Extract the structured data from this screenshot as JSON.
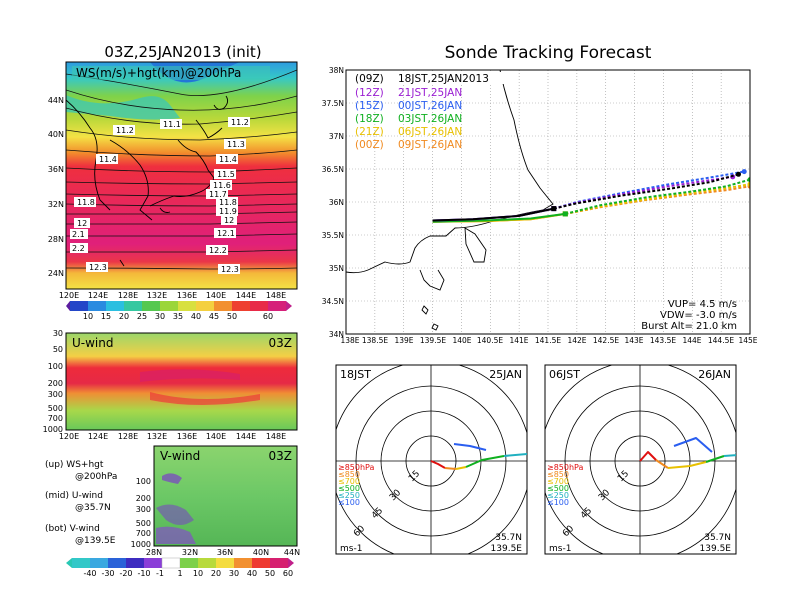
{
  "map_panel": {
    "title": "03Z,25JAN2013 (init)",
    "overlay_label": "WS(m/s)+hgt(km)@200hPa",
    "lat_ticks": [
      "44N",
      "40N",
      "36N",
      "32N",
      "28N",
      "24N"
    ],
    "lon_ticks": [
      "120E",
      "124E",
      "128E",
      "132E",
      "136E",
      "140E",
      "144E",
      "148E"
    ],
    "colorbar_ticks": [
      "10",
      "15",
      "20",
      "25",
      "30",
      "35",
      "40",
      "45",
      "50",
      "60"
    ],
    "contour_labels": [
      "11.1",
      "11.2",
      "11.2",
      "11.3",
      "11.4",
      "11.4",
      "11.5",
      "11.6",
      "11.7",
      "11.8",
      "11.8",
      "11.9",
      "12",
      "12",
      "12.1",
      "2.1",
      "2.2",
      "12.2",
      "12.3",
      "12.3"
    ]
  },
  "uwind_panel": {
    "label": "U-wind",
    "time": "03Z",
    "y_ticks": [
      "30",
      "50",
      "100",
      "200",
      "300",
      "500",
      "700",
      "1000"
    ],
    "x_ticks": [
      "120E",
      "124E",
      "128E",
      "132E",
      "136E",
      "140E",
      "144E",
      "148E"
    ]
  },
  "vwind_panel": {
    "label": "V-wind",
    "time": "03Z",
    "y_ticks": [
      "100",
      "200",
      "300",
      "500",
      "700",
      "1000"
    ],
    "x_ticks": [
      "28N",
      "32N",
      "36N",
      "40N",
      "44N"
    ],
    "colorbar_ticks": [
      "-40",
      "-30",
      "-20",
      "-10",
      "-1",
      "1",
      "10",
      "20",
      "30",
      "40",
      "50",
      "60"
    ]
  },
  "legend_notes": [
    {
      "line1": "(up) WS+hgt",
      "line2": "@200hPa"
    },
    {
      "line1": "(mid) U-wind",
      "line2": "@35.7N"
    },
    {
      "line1": "(bot) V-wind",
      "line2": "@139.5E"
    }
  ],
  "tracking_panel": {
    "title": "Sonde Tracking Forecast",
    "lat_ticks": [
      "38N",
      "37.5N",
      "37N",
      "36.5N",
      "36N",
      "35.5N",
      "35N",
      "34.5N",
      "34N"
    ],
    "lon_ticks": [
      "138E",
      "138.5E",
      "139E",
      "139.5E",
      "140E",
      "140.5E",
      "141E",
      "141.5E",
      "142E",
      "142.5E",
      "143E",
      "143.5E",
      "144E",
      "144.5E",
      "145E"
    ],
    "params": [
      "VUP= 4.5 m/s",
      "VDW= -3.0 m/s",
      "Burst Alt= 21.0 km"
    ],
    "legend": [
      {
        "init": "(09Z)",
        "time": "18JST,25JAN2013",
        "color": "#000000"
      },
      {
        "init": "(12Z)",
        "time": "21JST,25JAN",
        "color": "#9a1ed2"
      },
      {
        "init": "(15Z)",
        "time": "00JST,26JAN",
        "color": "#2a5ef0"
      },
      {
        "init": "(18Z)",
        "time": "03JST,26JAN",
        "color": "#10b020"
      },
      {
        "init": "(21Z)",
        "time": "06JST,26JAN",
        "color": "#e8c000"
      },
      {
        "init": "(00Z)",
        "time": "09JST,26JAN",
        "color": "#f08a20"
      }
    ]
  },
  "hodographs": [
    {
      "time": "18JST",
      "date": "25JAN",
      "lat": "35.7N",
      "lon": "139.5E",
      "unit": "ms-1"
    },
    {
      "time": "06JST",
      "date": "26JAN",
      "lat": "35.7N",
      "lon": "139.5E",
      "unit": "ms-1"
    }
  ],
  "hodo_ring_labels": [
    "15",
    "30",
    "45",
    "60"
  ],
  "hodo_levels": [
    {
      "label": "≥850hPa",
      "color": "#e01010"
    },
    {
      "label": "≤850",
      "color": "#f08a20"
    },
    {
      "label": "≤700",
      "color": "#e8c000"
    },
    {
      "label": "≤500",
      "color": "#10b020"
    },
    {
      "label": "≤250",
      "color": "#20b0c0"
    },
    {
      "label": "≤100",
      "color": "#2a5ef0"
    }
  ],
  "chart_data": {
    "type": "line",
    "title": "Sonde Tracking Forecast",
    "xlabel": "",
    "ylabel": "",
    "xlim": [
      138,
      145
    ],
    "ylim": [
      34,
      38
    ],
    "series": [
      {
        "name": "(09Z) 18JST,25JAN2013",
        "color": "#000000",
        "lon": [
          139.5,
          140.2,
          141.0,
          141.6,
          142.0,
          142.8,
          143.6,
          144.3,
          144.8
        ],
        "lat": [
          35.72,
          35.74,
          35.79,
          35.9,
          35.98,
          36.1,
          36.2,
          36.3,
          36.42
        ]
      },
      {
        "name": "(12Z) 21JST,25JAN",
        "color": "#9a1ed2",
        "lon": [
          139.5,
          140.2,
          141.0,
          141.6,
          142.0,
          142.8,
          143.6,
          144.3,
          144.7
        ],
        "lat": [
          35.72,
          35.74,
          35.79,
          35.9,
          35.99,
          36.12,
          36.24,
          36.33,
          36.38
        ]
      },
      {
        "name": "(15Z) 00JST,26JAN",
        "color": "#2a5ef0",
        "lon": [
          139.5,
          140.2,
          141.0,
          141.6,
          142.0,
          142.8,
          143.6,
          144.3,
          144.9
        ],
        "lat": [
          35.72,
          35.74,
          35.79,
          35.9,
          36.0,
          36.14,
          36.27,
          36.37,
          36.46
        ]
      },
      {
        "name": "(18Z) 03JST,26JAN",
        "color": "#10b020",
        "lon": [
          139.5,
          140.4,
          141.2,
          141.8,
          142.4,
          143.2,
          144.0,
          144.6,
          145.0
        ],
        "lat": [
          35.7,
          35.72,
          35.75,
          35.82,
          35.95,
          36.07,
          36.16,
          36.24,
          36.34
        ]
      },
      {
        "name": "(21Z) 06JST,26JAN",
        "color": "#e8c000",
        "lon": [
          139.5,
          140.4,
          141.2,
          141.8,
          142.4,
          143.2,
          144.0,
          144.6,
          145.0
        ],
        "lat": [
          35.7,
          35.71,
          35.74,
          35.82,
          35.93,
          36.04,
          36.14,
          36.21,
          36.27
        ]
      },
      {
        "name": "(00Z) 09JST,26JAN",
        "color": "#f08a20",
        "lon": [
          139.5,
          140.4,
          141.2,
          141.8,
          142.4,
          143.2,
          144.0,
          144.6,
          145.0
        ],
        "lat": [
          35.7,
          35.71,
          35.74,
          35.82,
          35.92,
          36.03,
          36.12,
          36.18,
          36.24
        ]
      }
    ]
  }
}
